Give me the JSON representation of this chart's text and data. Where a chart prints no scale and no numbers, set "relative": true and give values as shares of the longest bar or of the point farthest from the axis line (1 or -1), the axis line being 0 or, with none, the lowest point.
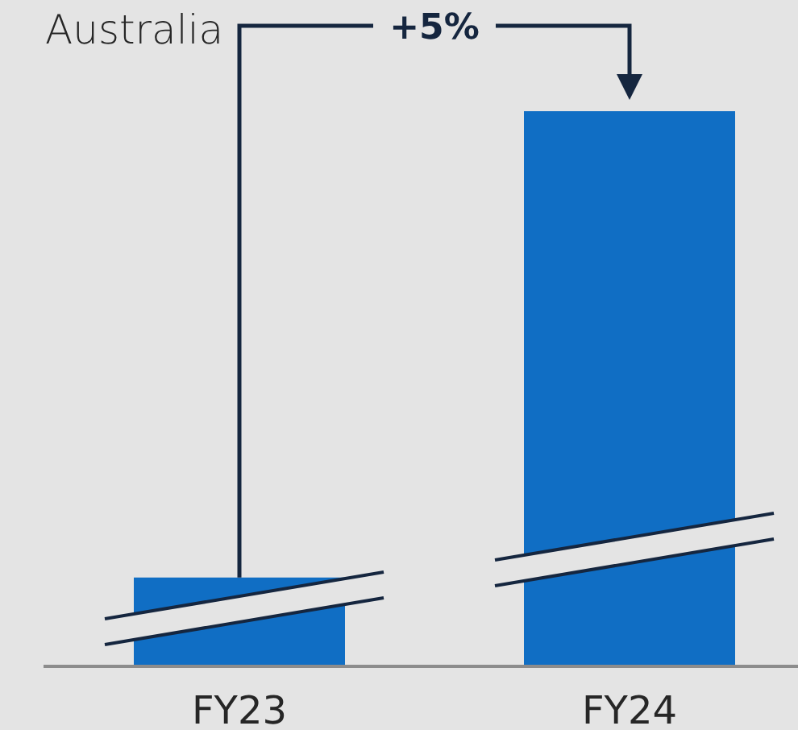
{
  "chart_data": {
    "type": "bar",
    "title": "Australia",
    "categories": [
      "FY23",
      "FY24"
    ],
    "values": [
      0.16,
      1
    ],
    "color": "#106ec4",
    "relative": true,
    "annotations": [
      "+5%"
    ]
  }
}
